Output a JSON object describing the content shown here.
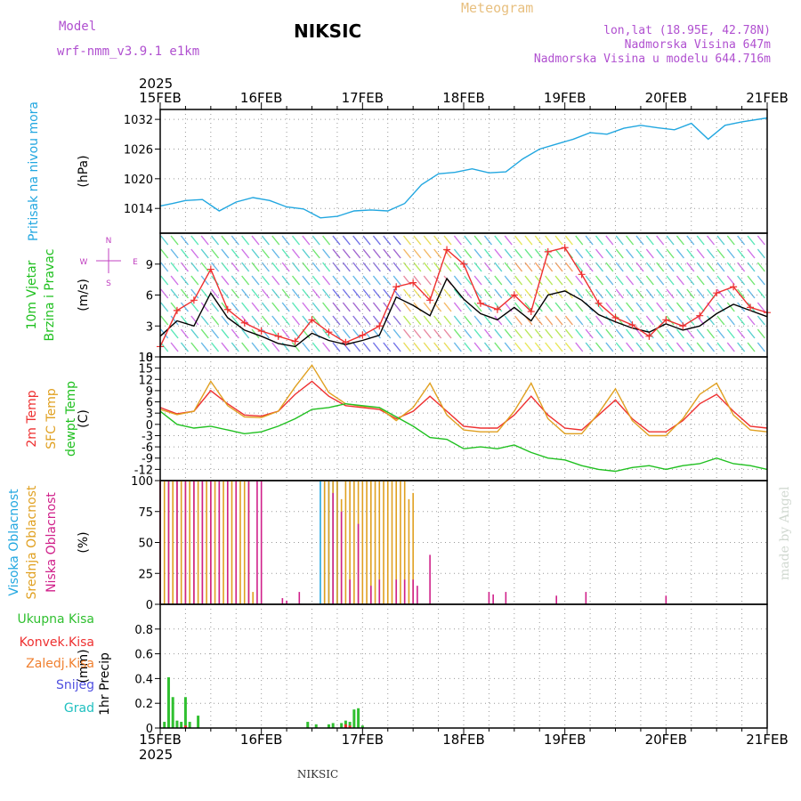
{
  "header": {
    "model_label": "Model",
    "model_name": "wrf-nmm_v3.9.1 e1km",
    "station": "NIKSIC",
    "title": "Meteogram",
    "coords": "lon,lat (18.95E, 42.78N)",
    "elevation": "Nadmorska Visina 647m",
    "model_elevation": "Nadmorska Visina u modelu 644.716m",
    "footer_station": "NIKSIC",
    "credit": "made by Angel"
  },
  "colors": {
    "pressure": "#22a7e0",
    "temp2m": "#ee3030",
    "sfc": "#e0a020",
    "dewpt": "#20c020",
    "high_cloud": "#22a7e0",
    "mid_cloud": "#e0a020",
    "low_cloud": "#d0208a",
    "total_precip": "#30c030",
    "conv_precip": "#ee3030",
    "frz_precip": "#f08030",
    "snow": "#5050e0",
    "hail": "#20c0c0",
    "wind_title": "#20c020",
    "wind_gust": "#ee3030",
    "wind_compass": "#c040c0",
    "credit": "#d0d8d0",
    "model_text": "#b050d0",
    "title_text": "#e8c080"
  },
  "chart_data": {
    "type": "line",
    "time_axis": {
      "start": "2025-02-15T00",
      "end": "2025-02-21T00",
      "year_label": "2025",
      "ticks": [
        "15FEB",
        "16FEB",
        "17FEB",
        "18FEB",
        "19FEB",
        "20FEB",
        "21FEB"
      ]
    },
    "panels": [
      {
        "id": "pressure",
        "ylabel_lines": [
          "Pritisak na nivou mora"
        ],
        "unit": "(hPa)",
        "ylim": [
          1009,
          1034
        ],
        "yticks": [
          1014,
          1020,
          1026,
          1032
        ],
        "grid": true,
        "series": [
          {
            "color_key": "pressure",
            "x_hours": [
              0,
              3,
              6,
              10,
              14,
              18,
              22,
              26,
              30,
              34,
              38,
              42,
              46,
              50,
              54,
              58,
              62,
              66,
              70,
              74,
              78,
              82,
              86,
              90,
              94,
              98,
              102,
              106,
              110,
              114,
              118,
              122,
              126,
              130,
              134,
              138,
              144
            ],
            "values": [
              1014.5,
              1015.0,
              1015.6,
              1015.8,
              1013.5,
              1015.3,
              1016.2,
              1015.6,
              1014.3,
              1013.9,
              1012.1,
              1012.4,
              1013.5,
              1013.7,
              1013.5,
              1015.0,
              1018.8,
              1021.0,
              1021.3,
              1022.0,
              1021.2,
              1021.4,
              1024.0,
              1026.0,
              1027.0,
              1028.0,
              1029.3,
              1029.0,
              1030.2,
              1030.8,
              1030.3,
              1029.9,
              1031.2,
              1028.0,
              1030.8,
              1031.5,
              1032.3
            ]
          }
        ]
      },
      {
        "id": "wind",
        "ylabel_lines": [
          "10m Vjetar",
          "Brzina i Pravac"
        ],
        "unit": "(m/s)",
        "ylim": [
          0,
          12
        ],
        "yticks": [
          0,
          3,
          6,
          9
        ],
        "grid": true,
        "compass": [
          "N",
          "W",
          "E",
          "S"
        ],
        "series": [
          {
            "name": "mean_speed",
            "color": "#000000",
            "x_hours": [
              0,
              4,
              8,
              12,
              16,
              20,
              24,
              28,
              32,
              36,
              40,
              44,
              48,
              52,
              56,
              60,
              64,
              68,
              72,
              76,
              80,
              84,
              88,
              92,
              96,
              100,
              104,
              108,
              112,
              116,
              120,
              124,
              128,
              132,
              136,
              140,
              144
            ],
            "values": [
              2.0,
              3.5,
              3.0,
              6.2,
              3.8,
              2.6,
              2.0,
              1.3,
              1.0,
              2.3,
              1.6,
              1.2,
              1.6,
              2.1,
              5.8,
              5.0,
              4.0,
              7.6,
              5.6,
              4.2,
              3.6,
              4.8,
              3.5,
              6.0,
              6.4,
              5.5,
              4.1,
              3.4,
              2.8,
              2.4,
              3.2,
              2.6,
              3.0,
              4.2,
              5.1,
              4.5,
              3.9
            ]
          },
          {
            "name": "gust",
            "color_key": "wind_gust",
            "x_hours": [
              0,
              4,
              8,
              12,
              16,
              20,
              24,
              28,
              32,
              36,
              40,
              44,
              48,
              52,
              56,
              60,
              64,
              68,
              72,
              76,
              80,
              84,
              88,
              92,
              96,
              100,
              104,
              108,
              112,
              116,
              120,
              124,
              128,
              132,
              136,
              140,
              144
            ],
            "values": [
              1.0,
              4.5,
              5.5,
              8.5,
              4.6,
              3.3,
              2.5,
              2.0,
              1.5,
              3.6,
              2.4,
              1.4,
              2.1,
              3.0,
              6.8,
              7.2,
              5.5,
              10.4,
              9.0,
              5.2,
              4.6,
              6.0,
              4.4,
              10.2,
              10.6,
              8.0,
              5.2,
              3.8,
              3.1,
              2.0,
              3.6,
              3.0,
              4.0,
              6.2,
              6.8,
              4.8,
              4.3
            ]
          }
        ]
      },
      {
        "id": "temperature",
        "ylabel_lines": [
          "2m Temp",
          "SFC Temp",
          "dewpt Temp"
        ],
        "unit": "(C)",
        "ylim": [
          -15,
          18
        ],
        "yticks": [
          -12,
          -9,
          -6,
          -3,
          0,
          3,
          6,
          9,
          12,
          15,
          18
        ],
        "grid": true,
        "series": [
          {
            "name": "2m Temp",
            "color_key": "temp2m",
            "x_hours": [
              0,
              4,
              8,
              12,
              16,
              20,
              24,
              28,
              32,
              36,
              40,
              44,
              48,
              52,
              56,
              60,
              64,
              68,
              72,
              76,
              80,
              84,
              88,
              92,
              96,
              100,
              104,
              108,
              112,
              116,
              120,
              124,
              128,
              132,
              136,
              140,
              144
            ],
            "values": [
              4.5,
              2.8,
              3.5,
              9.0,
              5.5,
              2.5,
              2.2,
              3.5,
              8.0,
              11.5,
              7.5,
              5.0,
              4.5,
              4.0,
              1.5,
              3.5,
              7.5,
              3.5,
              -0.5,
              -1.0,
              -1.0,
              2.5,
              7.5,
              2.5,
              -1.0,
              -1.5,
              2.5,
              6.5,
              1.5,
              -2.0,
              -2.0,
              1.0,
              5.5,
              8.0,
              3.5,
              -0.5,
              -1.0
            ]
          },
          {
            "name": "SFC Temp",
            "color_key": "sfc",
            "x_hours": [
              0,
              4,
              8,
              12,
              16,
              20,
              24,
              28,
              32,
              36,
              40,
              44,
              48,
              52,
              56,
              60,
              64,
              68,
              72,
              76,
              80,
              84,
              88,
              92,
              96,
              100,
              104,
              108,
              112,
              116,
              120,
              124,
              128,
              132,
              136,
              140,
              144
            ],
            "values": [
              4.0,
              2.6,
              3.5,
              11.5,
              5.0,
              2.0,
              1.8,
              3.5,
              10.0,
              15.8,
              8.5,
              5.5,
              4.8,
              4.5,
              1.0,
              4.5,
              11.0,
              2.5,
              -1.5,
              -2.0,
              -2.0,
              3.5,
              11.0,
              1.5,
              -2.5,
              -2.5,
              3.0,
              9.5,
              1.0,
              -3.0,
              -3.0,
              1.5,
              8.0,
              11.0,
              2.5,
              -1.5,
              -2.0
            ]
          },
          {
            "name": "dewpt Temp",
            "color_key": "dewpt",
            "x_hours": [
              0,
              4,
              8,
              12,
              16,
              20,
              24,
              28,
              32,
              36,
              40,
              44,
              48,
              52,
              56,
              60,
              64,
              68,
              72,
              76,
              80,
              84,
              88,
              92,
              96,
              100,
              104,
              108,
              112,
              116,
              120,
              124,
              128,
              132,
              136,
              140,
              144
            ],
            "values": [
              3.5,
              0.0,
              -1.0,
              -0.5,
              -1.5,
              -2.5,
              -2.0,
              -0.5,
              1.5,
              4.0,
              4.5,
              5.5,
              5.0,
              4.5,
              2.0,
              -0.5,
              -3.5,
              -4.0,
              -6.5,
              -6.0,
              -6.5,
              -5.5,
              -7.5,
              -9.0,
              -9.5,
              -11.0,
              -12.0,
              -12.5,
              -11.5,
              -11.0,
              -12.0,
              -11.0,
              -10.5,
              -9.0,
              -10.5,
              -11.0,
              -12.0
            ]
          }
        ]
      },
      {
        "id": "clouds",
        "ylabel_lines": [
          "Visoka Oblacnost",
          "Srednja Oblacnost",
          "Niska Oblacnost"
        ],
        "unit": "(%)",
        "ylim": [
          0,
          100
        ],
        "yticks": [
          0,
          25,
          50,
          75,
          100
        ],
        "grid": true,
        "series": [
          {
            "name": "Visoka Oblacnost",
            "color_key": "high_cloud",
            "x_hours": [
              38,
              39,
              40,
              41,
              42
            ],
            "values": [
              100,
              100,
              100,
              100,
              100
            ]
          },
          {
            "name": "Srednja Oblacnost",
            "color_key": "mid_cloud",
            "x_hours": [
              0,
              1,
              2,
              3,
              4,
              5,
              6,
              7,
              8,
              9,
              10,
              11,
              12,
              13,
              14,
              15,
              16,
              17,
              18,
              19,
              20,
              21,
              22,
              39,
              40,
              41,
              42,
              43,
              44,
              45,
              46,
              47,
              48,
              49,
              50,
              51,
              52,
              53,
              54,
              55,
              56,
              57,
              58,
              59,
              60
            ],
            "values": [
              100,
              100,
              100,
              100,
              100,
              100,
              100,
              100,
              100,
              100,
              100,
              100,
              100,
              100,
              100,
              100,
              100,
              100,
              100,
              100,
              100,
              100,
              10,
              100,
              100,
              100,
              100,
              85,
              100,
              100,
              100,
              100,
              100,
              100,
              100,
              100,
              100,
              100,
              100,
              100,
              100,
              100,
              100,
              85,
              90
            ]
          },
          {
            "name": "Niska Oblacnost",
            "color_key": "low_cloud",
            "x_hours": [
              0,
              2,
              4,
              6,
              8,
              10,
              12,
              14,
              16,
              18,
              21,
              23,
              24,
              29,
              30,
              33,
              41,
              43,
              45,
              47,
              50,
              52,
              56,
              58,
              60,
              61,
              64,
              78,
              79,
              82,
              94,
              101,
              120
            ],
            "values": [
              100,
              100,
              100,
              100,
              100,
              100,
              100,
              100,
              100,
              100,
              100,
              100,
              100,
              5,
              3,
              10,
              90,
              75,
              20,
              65,
              15,
              20,
              20,
              20,
              20,
              15,
              40,
              10,
              8,
              10,
              7,
              10,
              7
            ]
          }
        ]
      },
      {
        "id": "precip",
        "ylabel_lines": [
          "1hr Precip"
        ],
        "unit": "(mm)",
        "ylim": [
          0,
          1
        ],
        "yticks": [
          0,
          0.2,
          0.4,
          0.6,
          0.8
        ],
        "grid": true,
        "legend_lines": [
          {
            "text": "Ukupna Kisa",
            "color_key": "total_precip"
          },
          {
            "text": "Konvek.Kisa",
            "color_key": "conv_precip"
          },
          {
            "text": "Zaledj.Kisa",
            "color_key": "frz_precip"
          },
          {
            "text": "Snijeg",
            "color_key": "snow"
          },
          {
            "text": "Grad",
            "color_key": "hail"
          }
        ],
        "series": [
          {
            "name": "Ukupna Kisa",
            "color_key": "total_precip",
            "x_hours": [
              1,
              2,
              3,
              4,
              5,
              6,
              7,
              9,
              35,
              37,
              40,
              41,
              43,
              44,
              45,
              46,
              47,
              48
            ],
            "values": [
              0.05,
              0.41,
              0.25,
              0.06,
              0.05,
              0.25,
              0.05,
              0.1,
              0.05,
              0.03,
              0.03,
              0.04,
              0.04,
              0.06,
              0.05,
              0.15,
              0.16,
              0.02
            ]
          },
          {
            "name": "Konvek.Kisa",
            "color_key": "conv_precip",
            "x_hours": [
              6,
              44,
              45
            ],
            "values": [
              0.02,
              0.03,
              0.02
            ]
          }
        ]
      }
    ]
  }
}
